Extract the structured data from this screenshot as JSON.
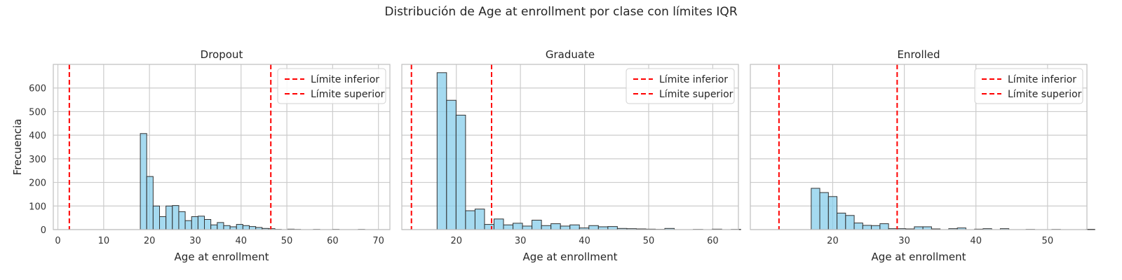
{
  "figure": {
    "suptitle": "Distribución de Age at enrollment por clase con límites IQR",
    "colors": {
      "bar_fill": "#87ceeb",
      "bar_edge": "#333333",
      "iqr_line": "#ff0000",
      "grid": "#cccccc",
      "spine": "#bfbfbf"
    }
  },
  "chart_data": [
    {
      "type": "bar",
      "title": "Dropout",
      "xlabel": "Age at enrollment",
      "ylabel": "Frecuencia",
      "xlim": [
        -1,
        72.5
      ],
      "ylim": [
        0,
        700
      ],
      "xticks": [
        0,
        10,
        20,
        30,
        40,
        50,
        60,
        70
      ],
      "yticks": [
        0,
        100,
        200,
        300,
        400,
        500,
        600
      ],
      "bin_start": 18,
      "bin_width": 1.4,
      "values": [
        407,
        225,
        100,
        55,
        100,
        102,
        76,
        38,
        55,
        57,
        43,
        20,
        30,
        17,
        12,
        22,
        17,
        13,
        9,
        5,
        4,
        1,
        0,
        2,
        1,
        0,
        0,
        1,
        0,
        0,
        1,
        0,
        0,
        0,
        1,
        0,
        0
      ],
      "iqr_lower": 2.5,
      "iqr_upper": 46.5,
      "legend": [
        "Límite inferior",
        "Límite superior"
      ],
      "legend_loc": "upper right",
      "grid": true
    },
    {
      "type": "bar",
      "title": "Graduate",
      "xlabel": "Age at enrollment",
      "ylabel": "",
      "xlim": [
        11.5,
        64
      ],
      "ylim": [
        0,
        700
      ],
      "xticks": [
        20,
        30,
        40,
        50,
        60
      ],
      "yticks": [
        0,
        100,
        200,
        300,
        400,
        500,
        600
      ],
      "bin_start": 17,
      "bin_width": 1.48,
      "values": [
        665,
        548,
        485,
        80,
        87,
        22,
        45,
        20,
        27,
        15,
        40,
        17,
        25,
        15,
        20,
        7,
        17,
        12,
        13,
        5,
        4,
        3,
        2,
        1,
        5,
        0,
        0,
        1,
        0,
        2,
        0,
        1
      ],
      "iqr_lower": 13,
      "iqr_upper": 25.5,
      "legend": [
        "Límite inferior",
        "Límite superior"
      ],
      "legend_loc": "upper right",
      "grid": true
    },
    {
      "type": "bar",
      "title": "Enrolled",
      "xlabel": "Age at enrollment",
      "ylabel": "",
      "xlim": [
        8.5,
        55.5
      ],
      "ylim": [
        0,
        700
      ],
      "xticks": [
        20,
        30,
        40,
        50
      ],
      "yticks": [
        0,
        100,
        200,
        300,
        400,
        500,
        600
      ],
      "bin_start": 17,
      "bin_width": 1.2,
      "values": [
        175,
        157,
        140,
        70,
        60,
        28,
        18,
        17,
        25,
        4,
        4,
        3,
        12,
        12,
        3,
        0,
        4,
        7,
        0,
        2,
        4,
        0,
        4,
        0,
        0,
        1,
        0,
        0,
        1,
        0,
        0,
        0,
        1
      ],
      "iqr_lower": 12.5,
      "iqr_upper": 29,
      "legend": [
        "Límite inferior",
        "Límite superior"
      ],
      "legend_loc": "upper right",
      "grid": true
    }
  ]
}
